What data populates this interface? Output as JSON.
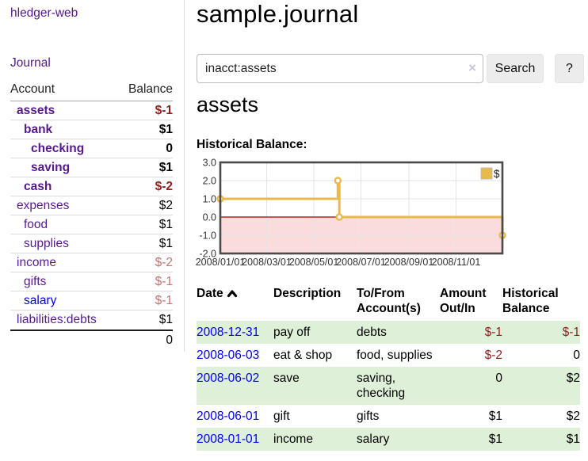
{
  "app": {
    "brand": "hledger-web",
    "nav_journal": "Journal"
  },
  "colors": {
    "link_purple": "#551a8b",
    "link_blue": "#0000dd",
    "date_link_blue": "#0000ee",
    "negative_strong": "#8e1f1f",
    "negative_soft": "#c17676",
    "row_highlight_green": "#dff0d8",
    "chart_gold": "#e8b94d",
    "chart_negative_bg": "#fbdcdc",
    "chart_zero_line": "#a00000",
    "button_gray": "#ececec"
  },
  "sidebar": {
    "header": {
      "account": "Account",
      "balance": "Balance"
    },
    "accounts": [
      {
        "name": "assets",
        "indent": 1,
        "bold": true,
        "balance": "$-1"
      },
      {
        "name": "bank",
        "indent": 2,
        "bold": true,
        "balance": "$1"
      },
      {
        "name": "checking",
        "indent": 3,
        "bold": true,
        "balance": "0"
      },
      {
        "name": "saving",
        "indent": 3,
        "bold": true,
        "balance": "$1"
      },
      {
        "name": "cash",
        "indent": 2,
        "bold": true,
        "balance": "$-2"
      },
      {
        "name": "expenses",
        "indent": 1,
        "bold": false,
        "balance": "$2"
      },
      {
        "name": "food",
        "indent": 2,
        "bold": false,
        "balance": "$1"
      },
      {
        "name": "supplies",
        "indent": 2,
        "bold": false,
        "balance": "$1"
      },
      {
        "name": "income",
        "indent": 1,
        "bold": false,
        "balance": "$-2"
      },
      {
        "name": "gifts",
        "indent": 2,
        "bold": false,
        "balance": "$-1"
      },
      {
        "name": "salary",
        "indent": 2,
        "bold": false,
        "balance": "$-1",
        "blue": true
      },
      {
        "name": "liabilities:debts",
        "indent": 1,
        "bold": false,
        "balance": "$1"
      }
    ],
    "total": "0"
  },
  "header": {
    "title": "sample.journal"
  },
  "search": {
    "query": "inacct:assets",
    "clear_icon": "×",
    "button": "Search",
    "help_button": "?"
  },
  "account_page": {
    "title": "assets",
    "chart_label": "Historical Balance:"
  },
  "chart_data": {
    "type": "line",
    "style": "step",
    "title": "Historical Balance:",
    "series": [
      {
        "name": "$",
        "color": "#e8b94d",
        "points": [
          [
            "2008-01-01",
            1
          ],
          [
            "2008-06-01",
            2
          ],
          [
            "2008-06-03",
            0
          ],
          [
            "2008-12-31",
            -1
          ]
        ]
      }
    ],
    "x_domain": [
      "2008/01/01",
      "2008/12/31"
    ],
    "x_ticks": [
      "2008/01/01",
      "2008/03/01",
      "2008/05/01",
      "2008/07/01",
      "2008/09/01",
      "2008/11/01"
    ],
    "y_ticks": [
      "3.0",
      "2.0",
      "1.0",
      "0.0",
      "-1.0",
      "-2.0"
    ],
    "ylim": [
      -2,
      3
    ],
    "grid": true,
    "legend_position": "top-right",
    "colors": {
      "negative_bg": "#fbdcdc",
      "zero_line": "#a00000"
    }
  },
  "register": {
    "columns": [
      {
        "label": "Date",
        "sorted": "asc"
      },
      {
        "label": "Description"
      },
      {
        "label": "To/From Account(s)"
      },
      {
        "label": "Amount Out/In",
        "align": "right"
      },
      {
        "label": "Historical Balance",
        "align": "right"
      }
    ],
    "rows": [
      {
        "date": "2008-12-31",
        "description": "pay off",
        "accounts": "debts",
        "amount": "$-1",
        "balance": "$-1",
        "highlight": true
      },
      {
        "date": "2008-06-03",
        "description": "eat & shop",
        "accounts": "food, supplies",
        "amount": "$-2",
        "balance": "0",
        "highlight": false
      },
      {
        "date": "2008-06-02",
        "description": "save",
        "accounts": "saving, checking",
        "amount": "0",
        "balance": "$2",
        "highlight": true
      },
      {
        "date": "2008-06-01",
        "description": "gift",
        "accounts": "gifts",
        "amount": "$1",
        "balance": "$2",
        "highlight": false
      },
      {
        "date": "2008-01-01",
        "description": "income",
        "accounts": "salary",
        "amount": "$1",
        "balance": "$1",
        "highlight": true
      }
    ]
  }
}
